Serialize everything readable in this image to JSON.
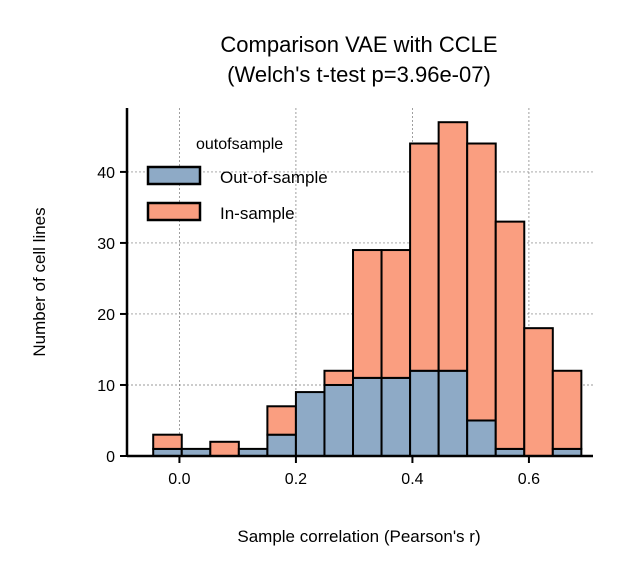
{
  "chart_data": {
    "type": "bar",
    "subtype": "stacked-histogram",
    "title": "Comparison VAE with CCLE",
    "subtitle": "(Welch's t-test p=3.96e-07)",
    "xlabel": "Sample correlation (Pearson's r)",
    "ylabel": "Number of cell lines",
    "xlim": [
      -0.09,
      0.71
    ],
    "ylim": [
      0,
      49
    ],
    "xticks": [
      0.0,
      0.2,
      0.4,
      0.6
    ],
    "xtick_labels": [
      "0.0",
      "0.2",
      "0.4",
      "0.6"
    ],
    "yticks": [
      0,
      10,
      20,
      30,
      40
    ],
    "ytick_labels": [
      "0",
      "10",
      "20",
      "30",
      "40"
    ],
    "grid": true,
    "legend": {
      "title": "outofsample",
      "position": "top-left",
      "entries": [
        "Out-of-sample",
        "In-sample"
      ]
    },
    "bin_edges": [
      -0.045,
      0.004,
      0.053,
      0.102,
      0.151,
      0.2,
      0.249,
      0.298,
      0.347,
      0.396,
      0.445,
      0.494,
      0.543,
      0.592,
      0.641,
      0.69
    ],
    "series": [
      {
        "name": "Out-of-sample",
        "color": "#8eaac6",
        "values": [
          1,
          1,
          0,
          1,
          3,
          9,
          10,
          11,
          11,
          12,
          12,
          5,
          1,
          0,
          1
        ]
      },
      {
        "name": "In-sample",
        "color": "#fa9e80",
        "values": [
          2,
          0,
          2,
          0,
          4,
          0,
          2,
          18,
          18,
          32,
          35,
          39,
          32,
          18,
          11
        ]
      }
    ],
    "totals": [
      3,
      1,
      2,
      1,
      7,
      9,
      12,
      29,
      29,
      44,
      47,
      44,
      33,
      18,
      12
    ]
  }
}
